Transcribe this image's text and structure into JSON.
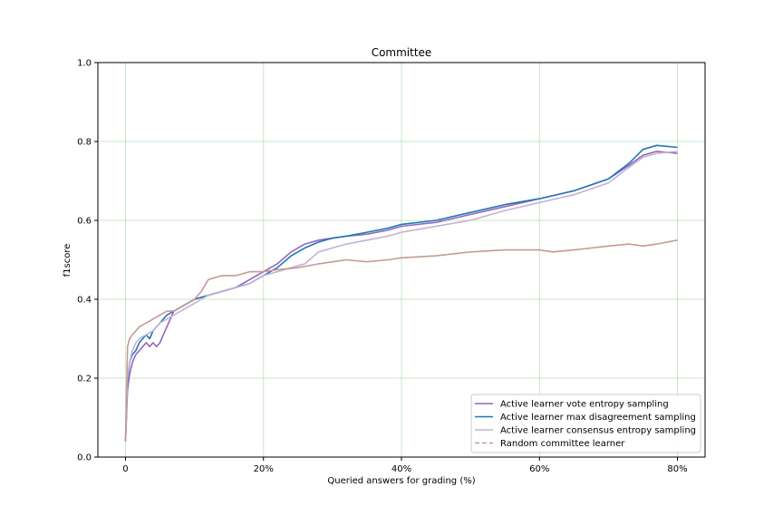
{
  "chart_data": {
    "type": "line",
    "title": "Committee",
    "xlabel": "Queried answers for grading (%)",
    "ylabel": "f1score",
    "xlim": [
      -4,
      84
    ],
    "ylim": [
      0.0,
      1.0
    ],
    "xticks": [
      0,
      20,
      40,
      60,
      80
    ],
    "xtick_labels": [
      "0",
      "20%",
      "40%",
      "60%",
      "80%"
    ],
    "yticks": [
      0.0,
      0.2,
      0.4,
      0.6,
      0.8,
      1.0
    ],
    "ytick_labels": [
      "0.0",
      "0.2",
      "0.4",
      "0.6",
      "0.8",
      "1.0"
    ],
    "grid": true,
    "grid_color": "#2ca02c",
    "legend_position": "lower-right",
    "series": [
      {
        "name": "Active learner vote entropy sampling",
        "color": "#9467bd",
        "style": "solid",
        "x": [
          0,
          0.3,
          0.6,
          1,
          1.5,
          2,
          2.5,
          3,
          3.5,
          4,
          4.5,
          5,
          5.5,
          6,
          6.5,
          7,
          8,
          9,
          10,
          12,
          14,
          16,
          18,
          20,
          22,
          24,
          26,
          28,
          30,
          32,
          35,
          38,
          40,
          45,
          50,
          55,
          60,
          65,
          70,
          73,
          75,
          77,
          80
        ],
        "y": [
          0.04,
          0.17,
          0.21,
          0.24,
          0.26,
          0.27,
          0.28,
          0.29,
          0.28,
          0.29,
          0.28,
          0.29,
          0.31,
          0.33,
          0.35,
          0.37,
          0.38,
          0.39,
          0.4,
          0.41,
          0.42,
          0.43,
          0.45,
          0.47,
          0.49,
          0.52,
          0.54,
          0.55,
          0.555,
          0.56,
          0.565,
          0.575,
          0.585,
          0.595,
          0.615,
          0.635,
          0.655,
          0.675,
          0.705,
          0.74,
          0.765,
          0.775,
          0.77
        ]
      },
      {
        "name": "Active learner max disagreement sampling",
        "color": "#1f77b4",
        "style": "solid",
        "x": [
          0,
          0.3,
          0.6,
          1,
          1.5,
          2,
          2.5,
          3,
          3.5,
          4,
          4.5,
          5,
          6,
          7,
          8,
          9,
          10,
          12,
          14,
          16,
          18,
          20,
          22,
          24,
          26,
          28,
          30,
          32,
          35,
          38,
          40,
          45,
          50,
          55,
          60,
          65,
          70,
          73,
          75,
          77,
          80
        ],
        "y": [
          0.04,
          0.19,
          0.24,
          0.26,
          0.27,
          0.29,
          0.3,
          0.31,
          0.3,
          0.32,
          0.33,
          0.34,
          0.36,
          0.37,
          0.38,
          0.39,
          0.4,
          0.41,
          0.42,
          0.43,
          0.44,
          0.46,
          0.48,
          0.51,
          0.53,
          0.545,
          0.555,
          0.56,
          0.57,
          0.58,
          0.59,
          0.6,
          0.62,
          0.64,
          0.655,
          0.675,
          0.705,
          0.745,
          0.78,
          0.79,
          0.785
        ]
      },
      {
        "name": "Active learner consensus entropy sampling",
        "color": "#c5b0d5",
        "style": "solid",
        "x": [
          0,
          0.3,
          0.6,
          1,
          1.5,
          2,
          3,
          4,
          5,
          6,
          7,
          8,
          9,
          10,
          12,
          14,
          16,
          18,
          20,
          22,
          24,
          26,
          28,
          30,
          32,
          35,
          38,
          40,
          45,
          50,
          55,
          60,
          65,
          70,
          73,
          75,
          77,
          80
        ],
        "y": [
          0.04,
          0.2,
          0.24,
          0.27,
          0.29,
          0.3,
          0.31,
          0.32,
          0.34,
          0.35,
          0.36,
          0.37,
          0.38,
          0.39,
          0.41,
          0.42,
          0.43,
          0.44,
          0.46,
          0.47,
          0.48,
          0.49,
          0.52,
          0.53,
          0.54,
          0.55,
          0.56,
          0.57,
          0.585,
          0.6,
          0.625,
          0.645,
          0.665,
          0.695,
          0.735,
          0.76,
          0.77,
          0.775
        ]
      },
      {
        "name": "Random committee learner",
        "color": "#c49c94",
        "style": "dashed",
        "x": [
          0,
          0.3,
          0.6,
          1,
          1.5,
          2,
          3,
          4,
          5,
          6,
          7,
          8,
          9,
          10,
          11,
          12,
          14,
          16,
          18,
          20,
          22,
          25,
          28,
          30,
          32,
          35,
          38,
          40,
          45,
          50,
          55,
          60,
          62,
          65,
          70,
          73,
          75,
          77,
          80
        ],
        "y": [
          0.04,
          0.28,
          0.3,
          0.31,
          0.32,
          0.33,
          0.34,
          0.35,
          0.36,
          0.37,
          0.37,
          0.38,
          0.39,
          0.4,
          0.42,
          0.45,
          0.46,
          0.46,
          0.47,
          0.47,
          0.475,
          0.48,
          0.49,
          0.495,
          0.5,
          0.495,
          0.5,
          0.505,
          0.51,
          0.52,
          0.525,
          0.525,
          0.52,
          0.525,
          0.535,
          0.54,
          0.535,
          0.54,
          0.55
        ]
      }
    ]
  }
}
